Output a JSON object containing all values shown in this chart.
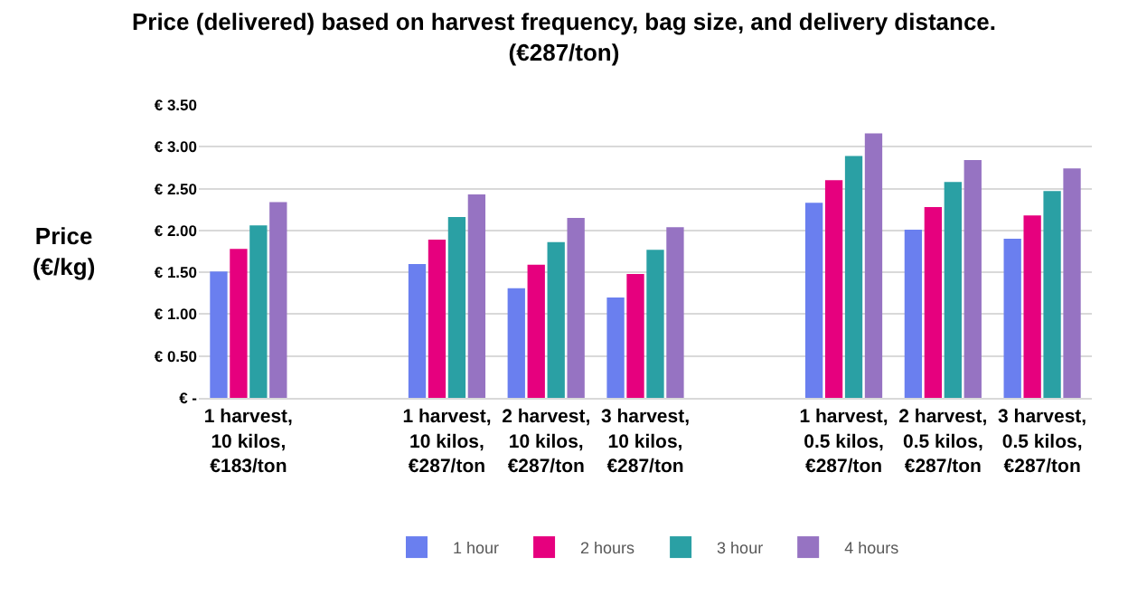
{
  "chart_data": {
    "type": "bar",
    "title": "Price (delivered) based on harvest frequency, bag size, and delivery distance.\n(€287/ton)",
    "ylabel": "Price\n(€/kg)",
    "categories": [
      "1 harvest, 10 kilos, €183/ton",
      null,
      "1 harvest, 10 kilos, €287/ton",
      "2 harvest, 10 kilos, €287/ton",
      "3 harvest, 10 kilos, €287/ton",
      null,
      "1 harvest, 0.5 kilos, €287/ton",
      "2 harvest, 0.5 kilos, €287/ton",
      "3 harvest, 0.5 kilos, €287/ton"
    ],
    "series": [
      {
        "name": "1 hour",
        "color": "#6a7fef",
        "values": [
          1.51,
          null,
          1.6,
          1.31,
          1.2,
          null,
          2.33,
          2.01,
          1.9
        ]
      },
      {
        "name": "2 hours",
        "color": "#e6007e",
        "values": [
          1.78,
          null,
          1.89,
          1.59,
          1.48,
          null,
          2.6,
          2.28,
          2.18
        ]
      },
      {
        "name": "3 hour",
        "color": "#2aa0a4",
        "values": [
          2.06,
          null,
          2.16,
          1.86,
          1.77,
          null,
          2.89,
          2.58,
          2.47
        ]
      },
      {
        "name": "4 hours",
        "color": "#9673c2",
        "values": [
          2.34,
          null,
          2.43,
          2.15,
          2.04,
          null,
          3.16,
          2.84,
          2.74
        ]
      }
    ],
    "ylim": [
      0,
      3.5
    ],
    "yticks": [
      {
        "value": 0,
        "label": "€ -"
      },
      {
        "value": 0.5,
        "label": "€ 0.50"
      },
      {
        "value": 1,
        "label": "€ 1.00"
      },
      {
        "value": 1.5,
        "label": "€ 1.50"
      },
      {
        "value": 2,
        "label": "€ 2.00"
      },
      {
        "value": 2.5,
        "label": "€ 2.50"
      },
      {
        "value": 3,
        "label": "€ 3.00"
      },
      {
        "value": 3.5,
        "label": "€ 3.50"
      }
    ],
    "grid": "y",
    "legend": "bottom"
  }
}
